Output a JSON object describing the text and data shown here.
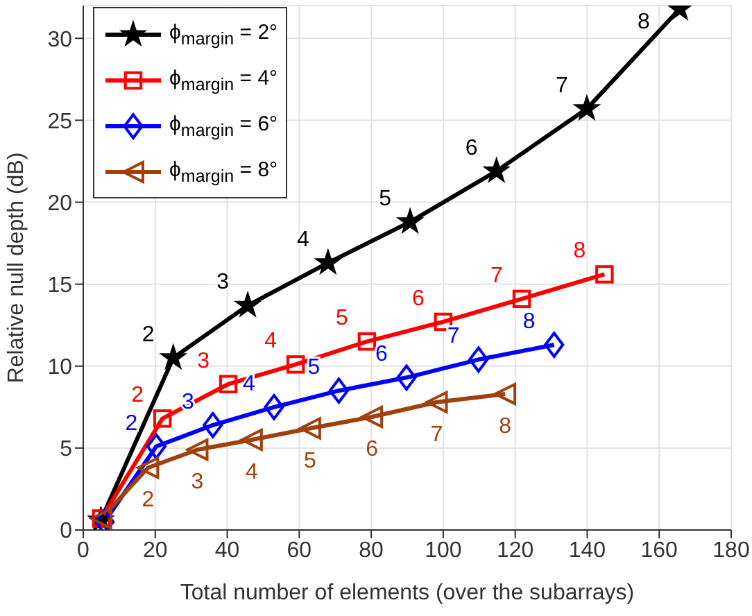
{
  "chart_data": {
    "type": "line",
    "xlabel": "Total number of elements (over the subarrays)",
    "ylabel": "Relative null depth (dB)",
    "xlim": [
      0,
      180
    ],
    "xticks": [
      0,
      20,
      40,
      60,
      80,
      100,
      120,
      140,
      160,
      180
    ],
    "ylim": [
      0,
      32
    ],
    "yticks": [
      0,
      5,
      10,
      15,
      20,
      25,
      30
    ],
    "grid": true,
    "legend": "top left",
    "line_style": "solid",
    "series": [
      {
        "name": "ϕ$_{margin}$ = 2°",
        "color": "#000000",
        "marker": "star",
        "x": [
          4.9,
          25,
          45.7,
          68,
          90.8,
          114.8,
          139.9,
          165.7
        ],
        "values": [
          0.6,
          10.5,
          13.7,
          16.3,
          18.8,
          21.9,
          25.7,
          31.8
        ]
      },
      {
        "name": "ϕ$_{margin}$ = 4°",
        "color": "#ff0000",
        "marker": "square",
        "x": [
          5,
          22,
          40.3,
          59,
          78.8,
          100,
          121.8,
          144.8
        ],
        "values": [
          0.7,
          6.8,
          8.9,
          10.1,
          11.5,
          12.7,
          14.1,
          15.6
        ]
      },
      {
        "name": "ϕ$_{margin}$ = 6°",
        "color": "#0000ff",
        "marker": "diamond",
        "x": [
          5.9,
          20.3,
          36,
          53,
          71,
          89.8,
          109.8,
          130.8
        ],
        "values": [
          0.5,
          5.1,
          6.4,
          7.5,
          8.5,
          9.3,
          10.4,
          11.3
        ]
      },
      {
        "name": "ϕ$_{margin}$ = 8°",
        "color": "#a0410d",
        "marker": "triangle",
        "x": [
          5,
          18,
          31.7,
          46.8,
          63,
          80.2,
          98.2,
          117.2
        ],
        "values": [
          0.7,
          3.8,
          4.9,
          5.5,
          6.2,
          6.9,
          7.8,
          8.3
        ]
      }
    ],
    "annotations": [
      {
        "text": "2",
        "x": 25,
        "y": 10.5
      },
      {
        "text": "3",
        "x": 45.7,
        "y": 13.7
      },
      {
        "text": "4",
        "x": 68,
        "y": 16.3
      },
      {
        "text": "5",
        "x": 90.8,
        "y": 18.8
      },
      {
        "text": "6",
        "x": 114.8,
        "y": 21.9
      },
      {
        "text": "7",
        "x": 139.9,
        "y": 25.7
      },
      {
        "text": "8",
        "x": 165.7,
        "y": 31.8
      },
      {
        "text": "2",
        "x": 22,
        "y": 6.8
      },
      {
        "text": "3",
        "x": 40.3,
        "y": 8.9
      },
      {
        "text": "4",
        "x": 59,
        "y": 10.1
      },
      {
        "text": "5",
        "x": 78.8,
        "y": 11.5
      },
      {
        "text": "6",
        "x": 100,
        "y": 12.7
      },
      {
        "text": "7",
        "x": 121.8,
        "y": 14.1
      },
      {
        "text": "8",
        "x": 144.8,
        "y": 15.6
      },
      {
        "text": "2",
        "x": 20.3,
        "y": 5.1
      },
      {
        "text": "3",
        "x": 36,
        "y": 6.4
      },
      {
        "text": "4",
        "x": 53,
        "y": 7.5
      },
      {
        "text": "5",
        "x": 71,
        "y": 8.5
      },
      {
        "text": "6",
        "x": 89.8,
        "y": 9.3
      },
      {
        "text": "7",
        "x": 109.8,
        "y": 10.4
      },
      {
        "text": "8",
        "x": 130.8,
        "y": 11.3
      },
      {
        "text": "2",
        "x": 18,
        "y": 3.8
      },
      {
        "text": "3",
        "x": 31.7,
        "y": 4.9
      },
      {
        "text": "4",
        "x": 46.8,
        "y": 5.5
      },
      {
        "text": "5",
        "x": 63,
        "y": 6.2
      },
      {
        "text": "6",
        "x": 80.2,
        "y": 6.9
      },
      {
        "text": "7",
        "x": 98.2,
        "y": 7.8
      },
      {
        "text": "8",
        "x": 117.2,
        "y": 8.3
      }
    ]
  }
}
